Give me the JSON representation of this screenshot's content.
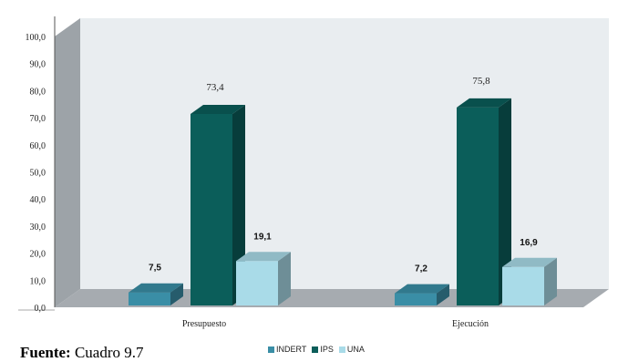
{
  "chart_data": {
    "type": "bar",
    "categories": [
      "Presupuesto",
      "Ejecución"
    ],
    "series": [
      {
        "name": "INDERT",
        "values": [
          7.5,
          7.2
        ],
        "color": "#3a8ea6",
        "labels": [
          "7,5",
          "7,2"
        ]
      },
      {
        "name": "IPS",
        "values": [
          73.4,
          75.8
        ],
        "color": "#0b5e5a",
        "labels": [
          "73,4",
          "75,8"
        ]
      },
      {
        "name": "UNA",
        "values": [
          19.1,
          16.9
        ],
        "color": "#a9dbe8",
        "labels": [
          "19,1",
          "16,9"
        ]
      }
    ],
    "y_ticks": [
      "0,0",
      "10,0",
      "20,0",
      "30,0",
      "40,0",
      "50,0",
      "60,0",
      "70,0",
      "80,0",
      "90,0",
      "100,0"
    ],
    "ylim": [
      0,
      100
    ],
    "legend_position": "bottom",
    "three_d": true
  },
  "source": {
    "label": "Fuente:",
    "text": " Cuadro 9.7"
  }
}
